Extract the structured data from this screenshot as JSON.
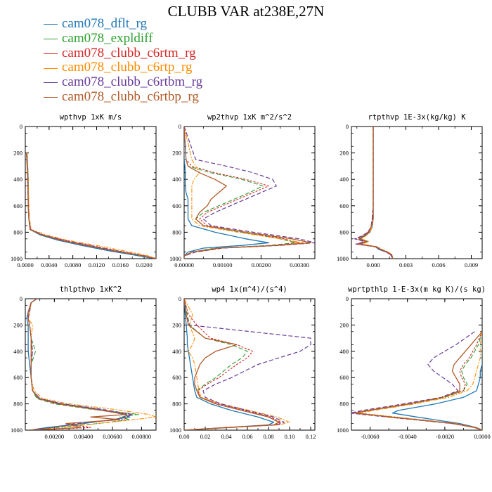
{
  "title": "CLUBB VAR at238E,27N",
  "legend": [
    {
      "name": "cam078_dflt_rg",
      "color": "#1f77b4"
    },
    {
      "name": "cam078_expldiff",
      "color": "#2ca02c"
    },
    {
      "name": "cam078_clubb_c6rtm_rg",
      "color": "#d62728"
    },
    {
      "name": "cam078_clubb_c6rtp_rg",
      "color": "#ff8c00"
    },
    {
      "name": "cam078_clubb_c6rtbm_rg",
      "color": "#6a3d9a"
    },
    {
      "name": "cam078_clubb_c6rtbp_rg",
      "color": "#b15a28"
    }
  ],
  "chart_data": [
    {
      "type": "line",
      "title": "wpthvp   1xK m/s",
      "xlim": [
        0,
        0.022
      ],
      "ylim": [
        1000,
        0
      ],
      "xticks": [
        "0.0000",
        "0.0040",
        "0.0080",
        "0.0120",
        "0.0160",
        "0.0200"
      ],
      "xtick_values": [
        0,
        0.004,
        0.008,
        0.012,
        0.016,
        0.02
      ],
      "yticks": [
        "0",
        "200",
        "400",
        "600",
        "800",
        "1000"
      ],
      "yticks_shown": true,
      "y": [
        200,
        400,
        600,
        700,
        780,
        820,
        860,
        900,
        940,
        970,
        990,
        1000
      ],
      "series": [
        {
          "values": [
            0.0003,
            0.0005,
            0.0005,
            0.0006,
            0.0008,
            0.0025,
            0.0055,
            0.0095,
            0.014,
            0.018,
            0.0205,
            0.022
          ]
        },
        {
          "values": [
            0.0002,
            0.0004,
            0.0005,
            0.0006,
            0.0008,
            0.0028,
            0.0062,
            0.0105,
            0.015,
            0.019,
            0.021,
            0.022
          ]
        },
        {
          "values": [
            0.0002,
            0.0004,
            0.0005,
            0.0006,
            0.0009,
            0.003,
            0.0065,
            0.011,
            0.0155,
            0.0192,
            0.0212,
            0.022
          ]
        },
        {
          "values": [
            0.0003,
            0.0005,
            0.0006,
            0.0007,
            0.001,
            0.0035,
            0.007,
            0.012,
            0.0165,
            0.02,
            0.0215,
            0.022
          ]
        },
        {
          "values": [
            0.0002,
            0.0004,
            0.0005,
            0.0006,
            0.0009,
            0.003,
            0.0064,
            0.0108,
            0.0152,
            0.019,
            0.0211,
            0.022
          ]
        },
        {
          "values": [
            0.0002,
            0.0004,
            0.0005,
            0.0006,
            0.0008,
            0.0028,
            0.006,
            0.0102,
            0.0148,
            0.0188,
            0.021,
            0.022
          ]
        }
      ]
    },
    {
      "type": "line",
      "title": "wp2thvp   1xK m^2/s^2",
      "xlim": [
        0,
        0.0034
      ],
      "ylim": [
        1000,
        0
      ],
      "xticks": [
        "0.00000",
        "0.00100",
        "0.00200",
        "0.00300"
      ],
      "xtick_values": [
        0,
        0.001,
        0.002,
        0.003
      ],
      "yticks": [
        "0",
        "200",
        "400",
        "600",
        "800",
        "1000"
      ],
      "yticks_shown": true,
      "y": [
        0,
        250,
        300,
        350,
        400,
        450,
        500,
        550,
        600,
        650,
        700,
        750,
        800,
        850,
        880,
        900,
        920,
        950,
        980,
        1000
      ],
      "series": [
        {
          "values": [
            0,
            0,
            2e-05,
            3e-05,
            3e-05,
            3e-05,
            5e-05,
            0.0001,
            0.0001,
            0.0001,
            0.0001,
            0.0002,
            0.0008,
            0.0016,
            0.0022,
            0.0015,
            0.0005,
            0.0001,
            0,
            0
          ]
        },
        {
          "values": [
            0,
            5e-05,
            0.0001,
            0.0007,
            0.0015,
            0.00205,
            0.0017,
            0.0013,
            0.0009,
            0.0005,
            0.0003,
            0.0005,
            0.0015,
            0.0025,
            0.0029,
            0.0022,
            0.0008,
            0.0002,
            0,
            0
          ]
        },
        {
          "values": [
            0,
            5e-05,
            0.0002,
            0.0008,
            0.0016,
            0.0022,
            0.0018,
            0.0014,
            0.001,
            0.0006,
            0.0004,
            0.0006,
            0.0016,
            0.0026,
            0.003,
            0.0023,
            0.0009,
            0.0002,
            0,
            0
          ]
        },
        {
          "values": [
            0,
            0.0002,
            0.0003,
            0.0004,
            0.00025,
            0.0002,
            0.0002,
            0.0002,
            0.0002,
            0.0002,
            0.0002,
            0.0004,
            0.0014,
            0.0025,
            0.0031,
            0.0024,
            0.001,
            0.0003,
            0,
            0
          ]
        },
        {
          "values": [
            0,
            0.0003,
            0.0011,
            0.0018,
            0.0023,
            0.0024,
            0.002,
            0.0016,
            0.0012,
            0.0008,
            0.0005,
            0.0007,
            0.0018,
            0.003,
            0.0034,
            0.0025,
            0.001,
            0.0003,
            0,
            0
          ]
        },
        {
          "values": [
            0,
            5e-05,
            0.0001,
            0.0004,
            0.0008,
            0.0011,
            0.0009,
            0.0007,
            0.0006,
            0.0004,
            0.0003,
            0.0005,
            0.0016,
            0.0028,
            0.0033,
            0.0024,
            0.0009,
            0.0002,
            0,
            0
          ]
        }
      ]
    },
    {
      "type": "line",
      "title": "rtpthvp   1E-3x(kg/kg) K",
      "xlim": [
        -0.002,
        0.01
      ],
      "ylim": [
        1000,
        0
      ],
      "xticks": [
        "0.000",
        "0.003",
        "0.006",
        "0.009"
      ],
      "xtick_values": [
        0,
        0.003,
        0.006,
        0.009
      ],
      "yticks": [
        "0",
        "200",
        "400",
        "600",
        "800",
        "1000"
      ],
      "yticks_shown": true,
      "y": [
        0,
        200,
        400,
        600,
        700,
        760,
        800,
        830,
        850,
        870,
        890,
        910,
        930,
        950,
        970,
        1000
      ],
      "series": [
        {
          "values": [
            0,
            0,
            0,
            0,
            0,
            -0.0001,
            -0.0003,
            -0.0008,
            -0.0012,
            -0.0005,
            -0.0012,
            0.0002,
            0.0005,
            0.0012,
            0.0016,
            0.0018
          ]
        },
        {
          "values": [
            0,
            0,
            0,
            0,
            -0.0001,
            -0.0002,
            -0.0004,
            -0.0009,
            -0.0014,
            -0.0006,
            -0.0014,
            0.0003,
            0.0006,
            0.0013,
            0.0017,
            0.0018
          ]
        },
        {
          "values": [
            0,
            0,
            0,
            0,
            -0.0001,
            -0.0002,
            -0.0005,
            -0.001,
            -0.0016,
            -0.0007,
            -0.0015,
            0.0002,
            0.0006,
            0.0012,
            0.0016,
            0.0018
          ]
        },
        {
          "values": [
            0,
            0,
            0,
            0,
            0,
            -0.0001,
            -0.0003,
            -0.0007,
            -0.0011,
            -0.0004,
            -0.001,
            0.0004,
            0.0008,
            0.0014,
            0.0017,
            0.0018
          ]
        },
        {
          "values": [
            0,
            0,
            0,
            0,
            -0.0001,
            -0.0002,
            -0.0005,
            -0.0011,
            -0.0017,
            -0.0008,
            -0.0016,
            0.0002,
            0.0006,
            0.0012,
            0.0016,
            0.0018
          ]
        },
        {
          "values": [
            0,
            0,
            0,
            0,
            0,
            -0.0002,
            -0.0004,
            -0.0009,
            -0.0013,
            -0.0006,
            -0.0013,
            0.0003,
            0.0007,
            0.0013,
            0.0017,
            0.0018
          ]
        }
      ]
    },
    {
      "type": "line",
      "title": "thlpthvp   1xK^2",
      "xlim": [
        0,
        0.009
      ],
      "ylim": [
        1000,
        0
      ],
      "xticks": [
        "0.00200",
        "0.00400",
        "0.00600",
        "0.00800"
      ],
      "xtick_values": [
        0.002,
        0.004,
        0.006,
        0.008
      ],
      "yticks": [
        "0",
        "200",
        "400",
        "600",
        "800",
        "1000"
      ],
      "yticks_shown": true,
      "y": [
        0,
        30,
        100,
        150,
        200,
        300,
        400,
        500,
        600,
        700,
        760,
        800,
        840,
        880,
        900,
        920,
        950,
        980,
        1000
      ],
      "series": [
        {
          "values": [
            0.0008,
            0.0004,
            0.0002,
            0.0001,
            0.0002,
            0.0002,
            0.0002,
            0.0003,
            0.0004,
            0.0005,
            0.001,
            0.0025,
            0.005,
            0.0068,
            0.0072,
            0.006,
            0.004,
            0.0015,
            0.0003
          ]
        },
        {
          "values": [
            0.0008,
            0.0004,
            0.0002,
            0.0002,
            0.0003,
            0.0004,
            0.0007,
            0.0004,
            0.0004,
            0.0005,
            0.0008,
            0.002,
            0.0045,
            0.0078,
            0.0065,
            0.0072,
            0.005,
            0.002,
            0.0003
          ]
        },
        {
          "values": [
            0.0008,
            0.0004,
            0.0003,
            0.0002,
            0.0003,
            0.0004,
            0.0005,
            0.0004,
            0.0004,
            0.0005,
            0.0009,
            0.0022,
            0.0048,
            0.0072,
            0.007,
            0.0068,
            0.0028,
            0.0045,
            0.0003
          ]
        },
        {
          "values": [
            0.0008,
            0.0004,
            0.0003,
            0.0002,
            0.0005,
            0.0004,
            0.0004,
            0.0004,
            0.0004,
            0.0006,
            0.0012,
            0.003,
            0.006,
            0.0085,
            0.009,
            0.0075,
            0.005,
            0.0025,
            0.0003
          ]
        },
        {
          "values": [
            0.0008,
            0.0004,
            0.0003,
            0.0002,
            0.0003,
            0.0004,
            0.0005,
            0.0004,
            0.0004,
            0.0005,
            0.001,
            0.0026,
            0.0052,
            0.0074,
            0.0068,
            0.0062,
            0.0035,
            0.0018,
            0.0003
          ]
        },
        {
          "values": [
            0.0008,
            0.0004,
            0.0002,
            0.0002,
            0.0003,
            0.0004,
            0.0004,
            0.0004,
            0.0004,
            0.0005,
            0.0009,
            0.0023,
            0.0047,
            0.007,
            0.0045,
            0.0065,
            0.0028,
            0.0038,
            0.0003
          ]
        }
      ]
    },
    {
      "type": "line",
      "title": "wp4   1x(m^4)/(s^4)",
      "xlim": [
        0,
        0.124
      ],
      "ylim": [
        1000,
        0
      ],
      "xticks": [
        "0.00",
        "0.02",
        "0.04",
        "0.06",
        "0.08",
        "0.10",
        "0.12"
      ],
      "xtick_values": [
        0,
        0.02,
        0.04,
        0.06,
        0.08,
        0.1,
        0.12
      ],
      "yticks": [
        "0",
        "200",
        "400",
        "600",
        "800",
        "1000"
      ],
      "yticks_shown": true,
      "y": [
        0,
        120,
        200,
        300,
        350,
        400,
        450,
        500,
        600,
        650,
        700,
        750,
        800,
        850,
        900,
        940,
        960,
        980,
        1000
      ],
      "series": [
        {
          "values": [
            0,
            0.001,
            0.002,
            0.003,
            0.003,
            0.004,
            0.005,
            0.006,
            0.008,
            0.009,
            0.01,
            0.012,
            0.025,
            0.045,
            0.07,
            0.085,
            0.08,
            0.04,
            0
          ]
        },
        {
          "values": [
            0,
            0.003,
            0.005,
            0.02,
            0.045,
            0.06,
            0.055,
            0.045,
            0.03,
            0.02,
            0.012,
            0.015,
            0.03,
            0.055,
            0.08,
            0.09,
            0.085,
            0.04,
            0
          ]
        },
        {
          "values": [
            0,
            0.004,
            0.012,
            0.025,
            0.05,
            0.065,
            0.06,
            0.05,
            0.033,
            0.022,
            0.013,
            0.016,
            0.032,
            0.058,
            0.082,
            0.092,
            0.086,
            0.04,
            0
          ]
        },
        {
          "values": [
            0,
            0.008,
            0.005,
            0.01,
            0.008,
            0.004,
            0.008,
            0.01,
            0.012,
            0.013,
            0.014,
            0.016,
            0.035,
            0.062,
            0.088,
            0.1,
            0.09,
            0.045,
            0
          ]
        },
        {
          "values": [
            0,
            0.002,
            0.005,
            0.12,
            0.12,
            0.11,
            0.09,
            0.07,
            0.045,
            0.03,
            0.018,
            0.02,
            0.035,
            0.06,
            0.085,
            0.095,
            0.088,
            0.042,
            0
          ]
        },
        {
          "values": [
            0,
            0.002,
            0.004,
            0.02,
            0.05,
            0.03,
            0.02,
            0.015,
            0.01,
            0.01,
            0.012,
            0.015,
            0.03,
            0.055,
            0.08,
            0.09,
            0.085,
            0.04,
            0
          ]
        }
      ]
    },
    {
      "type": "line",
      "title": "wprtpthlp   1-E-3x(m kg K)/(s kg)",
      "xlim": [
        -0.007,
        0
      ],
      "ylim": [
        1000,
        0
      ],
      "xticks": [
        "-0.0060",
        "-0.0040",
        "-0.0020",
        "0.0000"
      ],
      "xtick_values": [
        -0.006,
        -0.004,
        -0.002,
        0
      ],
      "yticks": [
        "0",
        "200",
        "400",
        "600",
        "800",
        "1000"
      ],
      "yticks_shown": true,
      "y": [
        250,
        350,
        450,
        500,
        550,
        600,
        650,
        700,
        750,
        800,
        850,
        870,
        900,
        950,
        980,
        1000
      ],
      "series": [
        {
          "values": [
            0,
            0,
            0,
            0,
            -0.0001,
            -0.0001,
            -0.0002,
            -0.0003,
            -0.001,
            -0.0025,
            -0.0045,
            -0.0048,
            -0.0035,
            -0.0012,
            -0.0003,
            0
          ]
        },
        {
          "values": [
            0,
            -0.0002,
            -0.0006,
            -0.0009,
            -0.0011,
            -0.001,
            -0.0008,
            -0.001,
            -0.002,
            -0.0038,
            -0.006,
            -0.0068,
            -0.0048,
            -0.0015,
            -0.0004,
            0
          ]
        },
        {
          "values": [
            0,
            -0.0003,
            -0.0007,
            -0.001,
            -0.0012,
            -0.0011,
            -0.0009,
            -0.001,
            -0.0021,
            -0.004,
            -0.0062,
            -0.0069,
            -0.005,
            -0.0016,
            -0.0004,
            0
          ]
        },
        {
          "values": [
            0,
            -0.0001,
            -0.0001,
            -0.0002,
            -0.0003,
            -0.0004,
            -0.0005,
            -0.0008,
            -0.0018,
            -0.0036,
            -0.0058,
            -0.0066,
            -0.0046,
            -0.0014,
            -0.0003,
            0
          ]
        },
        {
          "values": [
            -0.0004,
            -0.0014,
            -0.0026,
            -0.0029,
            -0.0026,
            -0.0021,
            -0.0016,
            -0.0013,
            -0.0022,
            -0.0042,
            -0.0064,
            -0.0071,
            -0.0051,
            -0.0016,
            -0.0004,
            0
          ]
        },
        {
          "values": [
            0,
            -0.0006,
            -0.0012,
            -0.0015,
            -0.0016,
            -0.0014,
            -0.0012,
            -0.0012,
            -0.0021,
            -0.0039,
            -0.0061,
            -0.0068,
            -0.0049,
            -0.0015,
            -0.0004,
            0
          ]
        }
      ]
    }
  ]
}
